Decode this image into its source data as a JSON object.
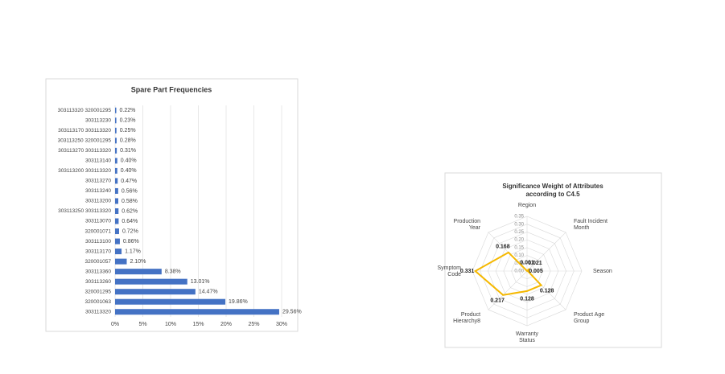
{
  "chart_data": [
    {
      "type": "hbar",
      "title": "Spare Part Frequencies",
      "categories": [
        "303113320 320001295",
        "303113230",
        "303113170 303113320",
        "303113250 320001295",
        "303113270 303113320",
        "303113140",
        "303113200 303113320",
        "303113270",
        "303113240",
        "303113200",
        "303113250 303113320",
        "303113070",
        "320001071",
        "303113100",
        "303113170",
        "320001057",
        "303113360",
        "303113260",
        "320001295",
        "320001063",
        "303113320"
      ],
      "values": [
        0.22,
        0.23,
        0.25,
        0.28,
        0.31,
        0.4,
        0.4,
        0.47,
        0.56,
        0.58,
        0.62,
        0.64,
        0.72,
        0.86,
        1.17,
        2.1,
        8.38,
        13.01,
        14.47,
        19.86,
        29.56
      ],
      "value_labels": [
        "0.22%",
        "0.23%",
        "0.25%",
        "0.28%",
        "0.31%",
        "0.40%",
        "0.40%",
        "0.47%",
        "0.56%",
        "0.58%",
        "0.62%",
        "0.64%",
        "0.72%",
        "0.86%",
        "1.17%",
        "2.10%",
        "8.38%",
        "13.01%",
        "14.47%",
        "19.86%",
        "29.56%"
      ],
      "color": "#4472c4",
      "xlim": [
        0,
        30
      ],
      "xticks": [
        {
          "value": 0,
          "label": "0%"
        },
        {
          "value": 5,
          "label": "5%"
        },
        {
          "value": 10,
          "label": "10%"
        },
        {
          "value": 15,
          "label": "15%"
        },
        {
          "value": 20,
          "label": "20%"
        },
        {
          "value": 25,
          "label": "25%"
        },
        {
          "value": 30,
          "label": "30%"
        }
      ],
      "grid": true
    },
    {
      "type": "radar",
      "title": "Significance Weight of Attributes according to C4.5",
      "categories": [
        "Region",
        "Fault Incident Month",
        "Season",
        "Product Age Group",
        "Warranty Status",
        "Product Hierarchy8",
        "Symptom Code",
        "Production Year"
      ],
      "values": [
        0.001,
        0.021,
        0.005,
        0.128,
        0.128,
        0.217,
        0.331,
        0.168
      ],
      "color": "#f5b800",
      "rlim": [
        0,
        0.35
      ],
      "rticks": [
        {
          "value": 0,
          "label": "0.00"
        },
        {
          "value": 0.05,
          "label": "0.05"
        },
        {
          "value": 0.1,
          "label": "0.10"
        },
        {
          "value": 0.15,
          "label": "0.15"
        },
        {
          "value": 0.2,
          "label": "0.20"
        },
        {
          "value": 0.25,
          "label": "0.25"
        },
        {
          "value": 0.3,
          "label": "0.30"
        },
        {
          "value": 0.35,
          "label": "0.35"
        }
      ]
    }
  ]
}
